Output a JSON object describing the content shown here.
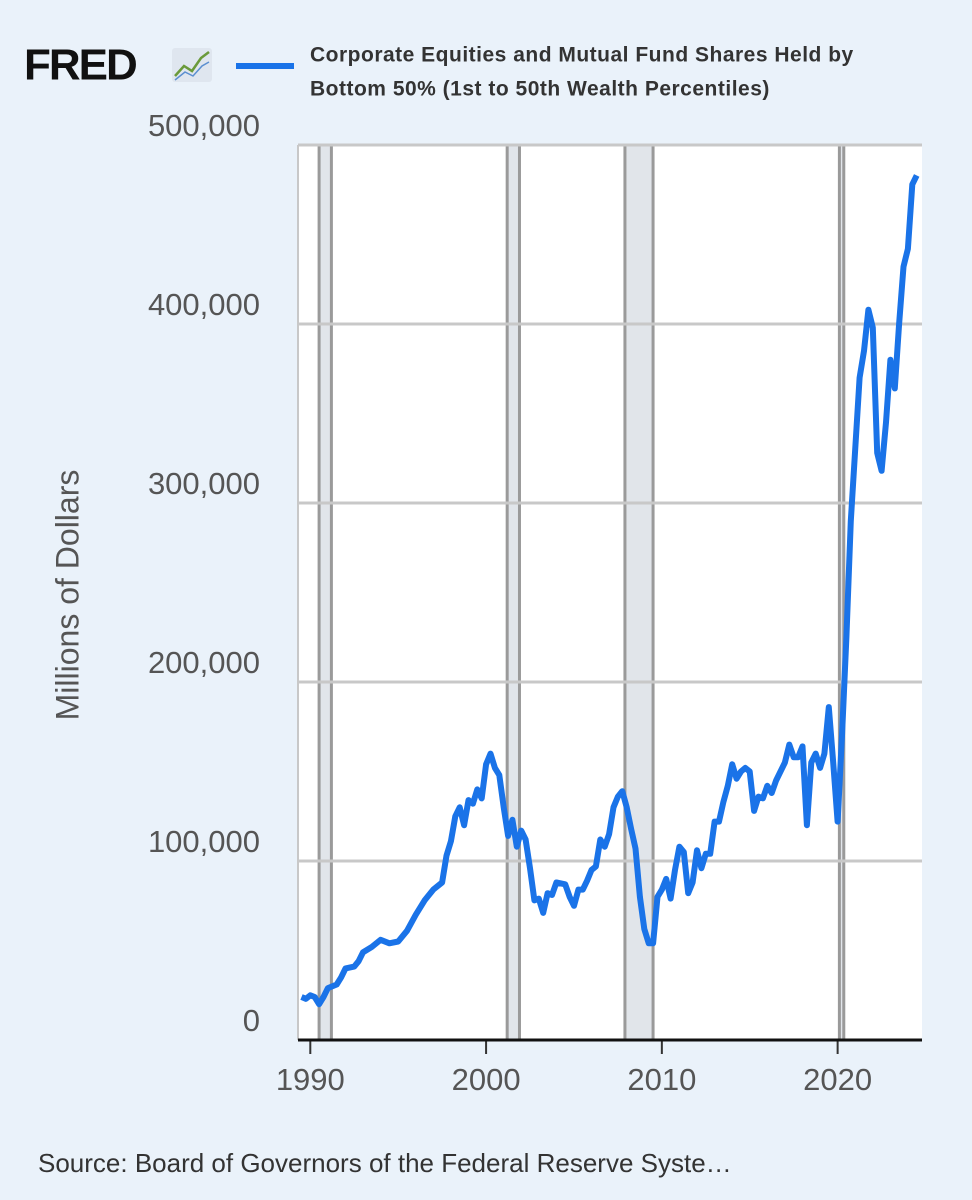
{
  "chart_data": {
    "type": "line",
    "logo": "FRED",
    "title": [
      "Corporate Equities and Mutual Fund Shares Held by",
      "Bottom 50% (1st to 50th Wealth Percentiles)"
    ],
    "y_label": "Millions of Dollars",
    "source": "Source: Board of Governors of the Federal Reserve Syste…",
    "xlim": [
      1989.3,
      2024.8
    ],
    "xticks": [
      1990,
      2000,
      2010,
      2020
    ],
    "ylim": [
      0,
      500000
    ],
    "yticks": [
      0,
      {
        "value": 100000,
        "label": "100,000"
      },
      {
        "value": 200000,
        "label": "200,000"
      },
      {
        "value": 300000,
        "label": "300,000"
      },
      {
        "value": 400000,
        "label": "400,000"
      },
      {
        "value": 500000,
        "label": "500,000"
      }
    ],
    "grid": true,
    "recessions": [
      [
        1990.5,
        1991.2
      ],
      [
        2001.2,
        2001.9
      ],
      [
        2007.9,
        2009.5
      ],
      [
        2020.1,
        2020.35
      ]
    ],
    "x": [
      1989.5,
      1989.75,
      1990.0,
      1990.25,
      1990.5,
      1990.75,
      1991.0,
      1991.5,
      1991.75,
      1992.0,
      1992.5,
      1992.75,
      1993.0,
      1993.5,
      1994.0,
      1994.5,
      1995.0,
      1995.5,
      1996.0,
      1996.5,
      1997.0,
      1997.5,
      1997.75,
      1998.0,
      1998.25,
      1998.5,
      1998.75,
      1999.0,
      1999.25,
      1999.5,
      1999.75,
      2000.0,
      2000.25,
      2000.5,
      2000.75,
      2001.0,
      2001.25,
      2001.5,
      2001.75,
      2002.0,
      2002.25,
      2002.5,
      2002.75,
      2003.0,
      2003.25,
      2003.5,
      2003.75,
      2004.0,
      2004.5,
      2004.75,
      2005.0,
      2005.25,
      2005.5,
      2005.75,
      2006.0,
      2006.25,
      2006.5,
      2006.75,
      2007.0,
      2007.25,
      2007.5,
      2007.75,
      2008.0,
      2008.25,
      2008.5,
      2008.75,
      2009.0,
      2009.25,
      2009.5,
      2009.75,
      2010.0,
      2010.25,
      2010.5,
      2010.75,
      2011.0,
      2011.25,
      2011.5,
      2011.75,
      2012.0,
      2012.25,
      2012.5,
      2012.75,
      2013.0,
      2013.25,
      2013.5,
      2013.75,
      2014.0,
      2014.25,
      2014.5,
      2014.75,
      2015.0,
      2015.25,
      2015.5,
      2015.75,
      2016.0,
      2016.25,
      2016.5,
      2016.75,
      2017.0,
      2017.25,
      2017.5,
      2017.75,
      2018.0,
      2018.25,
      2018.5,
      2018.75,
      2019.0,
      2019.25,
      2019.5,
      2019.75,
      2020.0,
      2020.25,
      2020.5,
      2020.75,
      2021.0,
      2021.25,
      2021.5,
      2021.75,
      2022.0,
      2022.25,
      2022.5,
      2022.75,
      2023.0,
      2023.25,
      2023.5,
      2023.75,
      2024.0,
      2024.25,
      2024.5
    ],
    "series": [
      {
        "name": "Corporate Equities and Mutual Fund Shares Held by Bottom 50% (1st to 50th Wealth Percentiles)",
        "color": "#1a73e8",
        "values": [
          24000,
          23000,
          25000,
          24000,
          20000,
          24000,
          29000,
          31000,
          35000,
          40000,
          41000,
          44000,
          49000,
          52000,
          56000,
          54000,
          55000,
          61000,
          70000,
          78000,
          84000,
          88000,
          103000,
          111000,
          125000,
          130000,
          120000,
          134000,
          132000,
          140000,
          135000,
          154000,
          160000,
          152000,
          148000,
          130000,
          114000,
          123000,
          108000,
          117000,
          112000,
          96000,
          78000,
          79000,
          71000,
          82000,
          81000,
          88000,
          87000,
          80000,
          75000,
          84000,
          84000,
          89000,
          95000,
          97000,
          112000,
          108000,
          115000,
          130000,
          136000,
          139000,
          130000,
          118000,
          107000,
          80000,
          62000,
          54000,
          54000,
          80000,
          84000,
          90000,
          79000,
          95000,
          108000,
          105000,
          82000,
          88000,
          106000,
          96000,
          104000,
          104000,
          122000,
          122000,
          133000,
          142000,
          154000,
          146000,
          150000,
          152000,
          150000,
          128000,
          136000,
          135000,
          142000,
          138000,
          145000,
          150000,
          155000,
          165000,
          158000,
          158000,
          164000,
          120000,
          155000,
          160000,
          152000,
          160000,
          186000,
          155000,
          122000,
          170000,
          225000,
          290000,
          330000,
          370000,
          385000,
          408000,
          398000,
          328000,
          318000,
          345000,
          380000,
          364000,
          400000,
          432000,
          442000,
          478000,
          483000
        ]
      }
    ]
  }
}
